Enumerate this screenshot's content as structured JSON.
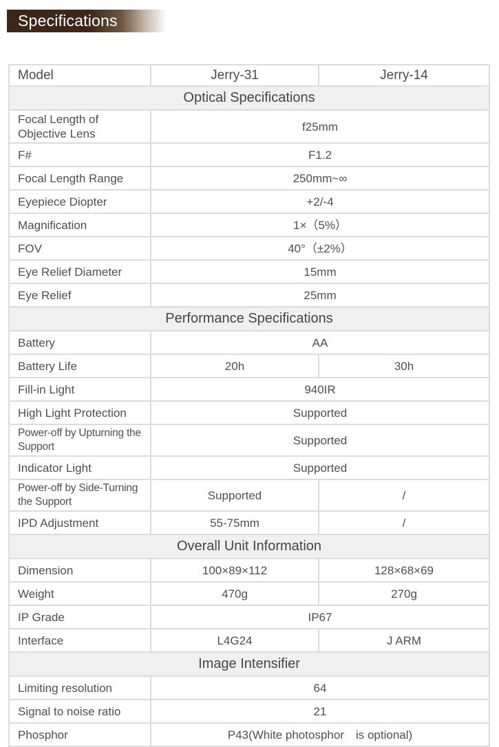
{
  "header": {
    "title": "Specifications"
  },
  "theme": {
    "title_bar_dark": "#3b2818",
    "title_text": "#ffffff",
    "section_header_bg": "#f0f0f1",
    "border_color": "#dcdcdc",
    "body_text": "#4f4f4f"
  },
  "table": {
    "model_row": {
      "label": "Model",
      "col1": "Jerry-31",
      "col2": "Jerry-14"
    },
    "sections": [
      {
        "title": "Optical Specifications",
        "rows": [
          {
            "label": "Focal Length of Objective Lens",
            "values": [
              "f25mm"
            ]
          },
          {
            "label": "F#",
            "values": [
              "F1.2"
            ]
          },
          {
            "label": "Focal Length Range",
            "values": [
              "250mm~∞"
            ]
          },
          {
            "label": "Eyepiece Diopter",
            "values": [
              "+2/-4"
            ]
          },
          {
            "label": "Magnification",
            "values": [
              "1×（5%）"
            ]
          },
          {
            "label": "FOV",
            "values": [
              "40°（±2%）"
            ]
          },
          {
            "label": "Eye Relief Diameter",
            "values": [
              "15mm"
            ]
          },
          {
            "label": "Eye Relief",
            "values": [
              "25mm"
            ]
          }
        ]
      },
      {
        "title": "Performance Specifications",
        "rows": [
          {
            "label": "Battery",
            "values": [
              "AA"
            ]
          },
          {
            "label": "Battery Life",
            "values": [
              "20h",
              "30h"
            ]
          },
          {
            "label": "Fill-in Light",
            "values": [
              "940IR"
            ]
          },
          {
            "label": "High Light Protection",
            "values": [
              "Supported"
            ]
          },
          {
            "label": "Power-off by Upturning the Support",
            "values": [
              "Supported"
            ]
          },
          {
            "label": "Indicator Light",
            "values": [
              "Supported"
            ]
          },
          {
            "label": "Power-off by Side-Turning the Support",
            "values": [
              "Supported",
              "/"
            ]
          },
          {
            "label": "IPD Adjustment",
            "values": [
              "55-75mm",
              "/"
            ]
          }
        ]
      },
      {
        "title": "Overall Unit Information",
        "rows": [
          {
            "label": "Dimension",
            "values": [
              "100×89×112",
              "128×68×69"
            ]
          },
          {
            "label": "Weight",
            "values": [
              "470g",
              "270g"
            ]
          },
          {
            "label": "IP Grade",
            "values": [
              "IP67"
            ]
          },
          {
            "label": "Interface",
            "values": [
              "L4G24",
              "J ARM"
            ]
          }
        ]
      },
      {
        "title": "Image Intensifier",
        "rows": [
          {
            "label": "Limiting resolution",
            "values": [
              "64"
            ]
          },
          {
            "label": "Signal to noise ratio",
            "values": [
              "21"
            ]
          },
          {
            "label": "Phosphor",
            "values": [
              "P43(White photosphor　is optional)"
            ]
          }
        ]
      }
    ]
  }
}
